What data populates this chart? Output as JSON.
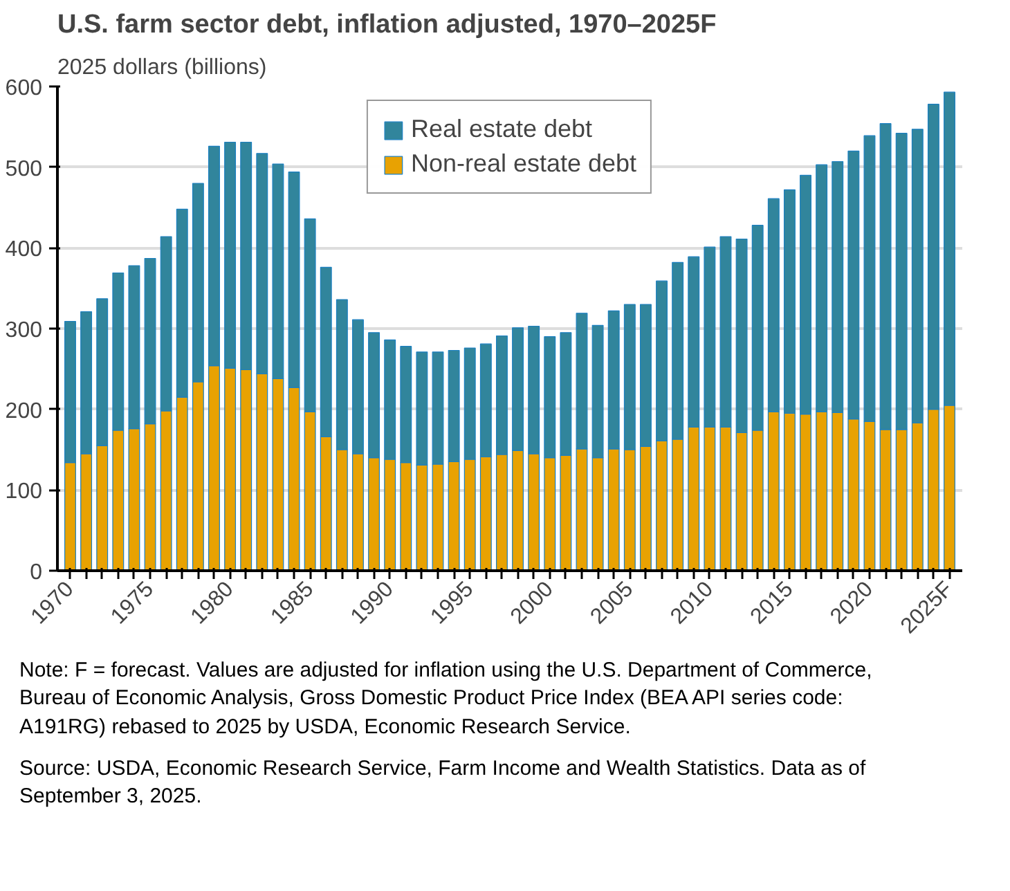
{
  "chart_data": {
    "type": "bar",
    "stacked": true,
    "title": "U.S. farm sector debt, inflation adjusted, 1970–2025F",
    "ylabel": "2025 dollars (billions)",
    "categories": [
      "1970",
      null,
      null,
      null,
      null,
      "1975",
      null,
      null,
      null,
      null,
      "1980",
      null,
      null,
      null,
      null,
      "1985",
      null,
      null,
      null,
      null,
      "1990",
      null,
      null,
      null,
      null,
      "1995",
      null,
      null,
      null,
      null,
      "2000",
      null,
      null,
      null,
      null,
      "2005",
      null,
      null,
      null,
      null,
      "2010",
      null,
      null,
      null,
      null,
      "2015",
      null,
      null,
      null,
      null,
      "2020",
      null,
      null,
      null,
      null,
      "2025F"
    ],
    "series": [
      {
        "name": "Non-real estate debt",
        "color": "#e8a202",
        "values": [
          134,
          145,
          155,
          174,
          176,
          182,
          198,
          215,
          234,
          254,
          251,
          249,
          244,
          238,
          227,
          197,
          166,
          150,
          145,
          140,
          138,
          134,
          131,
          132,
          135,
          138,
          141,
          144,
          149,
          145,
          140,
          143,
          151,
          140,
          151,
          150,
          154,
          161,
          163,
          178,
          178,
          178,
          171,
          174,
          197,
          195,
          194,
          197,
          196,
          188,
          185,
          175,
          175,
          183,
          200,
          205
        ]
      },
      {
        "name": "Real estate debt",
        "color": "#31859c",
        "values": [
          175,
          176,
          182,
          195,
          202,
          205,
          216,
          233,
          246,
          272,
          280,
          282,
          273,
          266,
          267,
          239,
          210,
          186,
          166,
          155,
          148,
          144,
          140,
          139,
          138,
          138,
          140,
          147,
          152,
          158,
          150,
          152,
          168,
          164,
          171,
          180,
          176,
          198,
          219,
          211,
          223,
          236,
          240,
          254,
          264,
          277,
          296,
          306,
          311,
          332,
          354,
          379,
          367,
          364,
          378,
          388
        ]
      }
    ],
    "ylim": [
      0,
      600
    ],
    "yticks": [
      0,
      100,
      200,
      300,
      400,
      500,
      600
    ],
    "grid": "y",
    "legend": "top",
    "annotations": [
      "Note: F = forecast. Values are adjusted for inflation using the U.S. Department of Commerce, Bureau of Economic Analysis, Gross Domestic Product Price Index (BEA API series code: A191RG) rebased to 2025 by USDA, Economic Research Service.",
      "Source: USDA, Economic Research Service, Farm Income and Wealth Statistics. Data as of September 3, 2025."
    ]
  }
}
